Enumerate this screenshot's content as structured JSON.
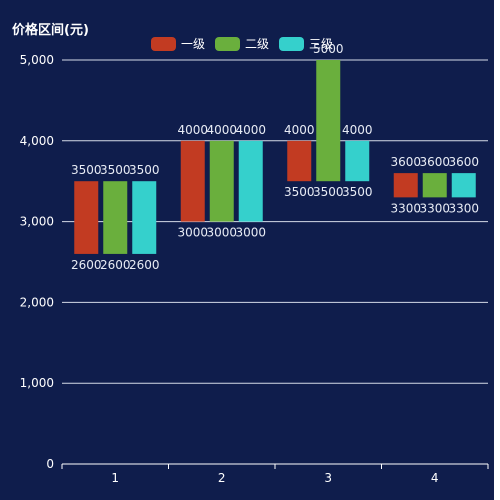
{
  "chart_data": {
    "type": "bar",
    "subtype": "floating-range",
    "ylabel": "价格区间(元)",
    "xlabel": "",
    "categories": [
      "1",
      "2",
      "3",
      "4"
    ],
    "ylim": [
      0,
      5000
    ],
    "yticks": [
      "0",
      "1,000",
      "2,000",
      "3,000",
      "4,000",
      "5,000"
    ],
    "grid": true,
    "legend_position": "top-center",
    "series": [
      {
        "name": "一级",
        "color": "#c23b22",
        "low": [
          2600,
          3000,
          3500,
          3300
        ],
        "high": [
          3500,
          4000,
          4000,
          3600
        ]
      },
      {
        "name": "二级",
        "color": "#6aaf3d",
        "low": [
          2600,
          3000,
          3500,
          3300
        ],
        "high": [
          3500,
          4000,
          5000,
          3600
        ]
      },
      {
        "name": "三级",
        "color": "#35d0cc",
        "low": [
          2600,
          3000,
          3500,
          3300
        ],
        "high": [
          3500,
          4000,
          4000,
          3600
        ]
      }
    ]
  }
}
